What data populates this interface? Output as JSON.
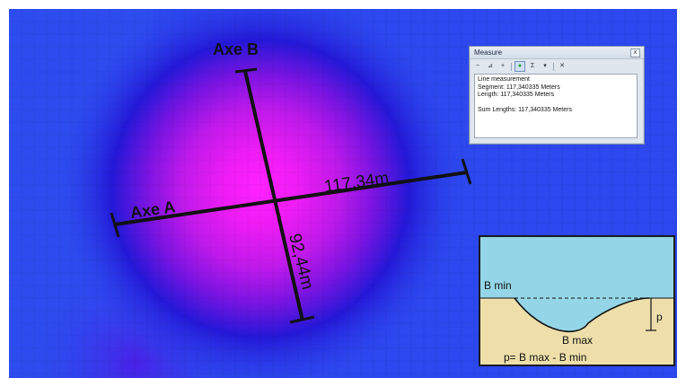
{
  "map": {
    "axis_a_label": "Axe A",
    "axis_b_label": "Axe B",
    "axis_a_length": "117,34m",
    "axis_b_length": "92,44m",
    "colors": {
      "background_blue": "#2c48ee",
      "center_magenta": "#ff1aff",
      "mid_purple": "#9a19e6",
      "dark_blue": "#1b24d2"
    }
  },
  "measure_window": {
    "title": "Measure",
    "close_label": "x",
    "toolbar": [
      {
        "name": "line-tool-icon",
        "glyph": "~"
      },
      {
        "name": "area-tool-icon",
        "glyph": "⊿"
      },
      {
        "name": "feature-tool-icon",
        "glyph": "+"
      },
      {
        "name": "snap-toggle-icon",
        "glyph": "●"
      },
      {
        "name": "sum-icon",
        "glyph": "Σ"
      },
      {
        "name": "units-dropdown-icon",
        "glyph": "▾"
      },
      {
        "name": "clear-icon",
        "glyph": "✕"
      }
    ],
    "lines": {
      "heading": "Line measurement",
      "segment": "Segment: 117,340335 Meters",
      "length": "Length: 117,340335 Meters",
      "sum": "Sum Lengths: 117,340335 Meters"
    }
  },
  "inset": {
    "b_min": "B min",
    "b_max": "B max",
    "p": "p",
    "formula": "p= B max - B min",
    "colors": {
      "sky": "#94d6e8",
      "ground": "#eedfaa"
    }
  }
}
